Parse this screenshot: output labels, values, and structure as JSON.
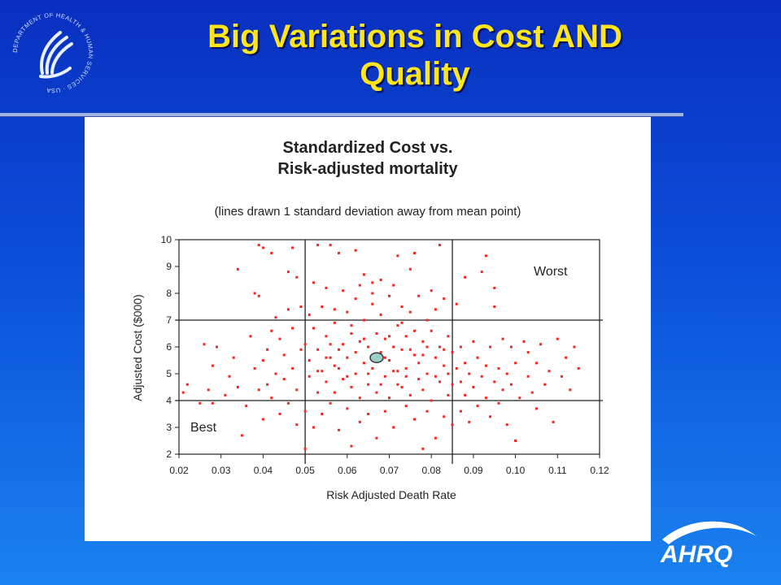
{
  "slide": {
    "title_line1": "Big Variations in Cost AND",
    "title_line2": "Quality"
  },
  "logos": {
    "hhs_seal_text": "DEPARTMENT OF HEALTH & HUMAN SERVICES · USA",
    "ahrq_text": "AHRQ"
  },
  "colors": {
    "background_top": "#0a2fc0",
    "background_bottom": "#1a82f0",
    "title": "#ffe51a",
    "points": "#ff2020",
    "mean_marker": "#9ad0c8"
  },
  "chart_data": {
    "type": "scatter",
    "title_line1": "Standardized Cost vs.",
    "title_line2": "Risk-adjusted mortality",
    "subtitle": "(lines drawn 1 standard deviation away from mean point)",
    "xlabel": "Risk Adjusted Death Rate",
    "ylabel": "Adjusted Cost ($000)",
    "xlim": [
      0.02,
      0.12
    ],
    "ylim": [
      2,
      10
    ],
    "x_ticks": [
      "0.02",
      "0.03",
      "0.04",
      "0.05",
      "0.06",
      "0.07",
      "0.08",
      "0.09",
      "0.10",
      "0.11",
      "0.12"
    ],
    "y_ticks": [
      "2",
      "3",
      "4",
      "5",
      "6",
      "7",
      "8",
      "9",
      "10"
    ],
    "reference_lines": {
      "x": [
        0.05,
        0.085
      ],
      "y": [
        4,
        7
      ]
    },
    "mean_point": {
      "x": 0.067,
      "y": 5.6
    },
    "annotations": {
      "top_right": "Worst",
      "bottom_left": "Best"
    },
    "grid": false,
    "legend": "none",
    "series": [
      {
        "values": [
          [
            0.021,
            4.3
          ],
          [
            0.022,
            4.6
          ],
          [
            0.025,
            3.9
          ],
          [
            0.026,
            6.1
          ],
          [
            0.027,
            4.4
          ],
          [
            0.028,
            3.9
          ],
          [
            0.028,
            5.3
          ],
          [
            0.029,
            6.0
          ],
          [
            0.031,
            4.2
          ],
          [
            0.032,
            4.9
          ],
          [
            0.033,
            5.6
          ],
          [
            0.034,
            4.5
          ],
          [
            0.034,
            8.9
          ],
          [
            0.035,
            2.7
          ],
          [
            0.036,
            3.8
          ],
          [
            0.037,
            6.4
          ],
          [
            0.038,
            5.2
          ],
          [
            0.038,
            8.0
          ],
          [
            0.039,
            7.9
          ],
          [
            0.039,
            4.4
          ],
          [
            0.039,
            9.8
          ],
          [
            0.04,
            3.3
          ],
          [
            0.04,
            5.5
          ],
          [
            0.04,
            9.7
          ],
          [
            0.041,
            4.6
          ],
          [
            0.041,
            5.9
          ],
          [
            0.042,
            6.6
          ],
          [
            0.042,
            4.1
          ],
          [
            0.042,
            9.5
          ],
          [
            0.043,
            7.1
          ],
          [
            0.043,
            5.0
          ],
          [
            0.044,
            3.5
          ],
          [
            0.044,
            6.3
          ],
          [
            0.045,
            4.8
          ],
          [
            0.045,
            5.7
          ],
          [
            0.046,
            8.8
          ],
          [
            0.046,
            7.4
          ],
          [
            0.046,
            3.9
          ],
          [
            0.047,
            5.2
          ],
          [
            0.047,
            6.7
          ],
          [
            0.047,
            9.7
          ],
          [
            0.048,
            4.4
          ],
          [
            0.048,
            8.6
          ],
          [
            0.048,
            3.1
          ],
          [
            0.049,
            5.9
          ],
          [
            0.049,
            7.5
          ],
          [
            0.05,
            6.1
          ],
          [
            0.05,
            3.6
          ],
          [
            0.05,
            2.2
          ],
          [
            0.051,
            4.9
          ],
          [
            0.051,
            7.2
          ],
          [
            0.051,
            5.5
          ],
          [
            0.052,
            3.0
          ],
          [
            0.052,
            6.7
          ],
          [
            0.052,
            8.4
          ],
          [
            0.053,
            4.3
          ],
          [
            0.053,
            5.9
          ],
          [
            0.053,
            9.8
          ],
          [
            0.054,
            7.5
          ],
          [
            0.054,
            5.1
          ],
          [
            0.054,
            3.5
          ],
          [
            0.055,
            6.4
          ],
          [
            0.055,
            4.7
          ],
          [
            0.055,
            8.2
          ],
          [
            0.056,
            9.8
          ],
          [
            0.056,
            5.6
          ],
          [
            0.056,
            3.9
          ],
          [
            0.057,
            6.9
          ],
          [
            0.057,
            4.3
          ],
          [
            0.057,
            7.4
          ],
          [
            0.058,
            5.2
          ],
          [
            0.058,
            9.5
          ],
          [
            0.058,
            2.9
          ],
          [
            0.059,
            6.1
          ],
          [
            0.059,
            4.8
          ],
          [
            0.059,
            8.1
          ],
          [
            0.06,
            5.6
          ],
          [
            0.06,
            3.7
          ],
          [
            0.06,
            7.3
          ],
          [
            0.061,
            6.5
          ],
          [
            0.061,
            4.5
          ],
          [
            0.061,
            2.3
          ],
          [
            0.062,
            5.0
          ],
          [
            0.062,
            7.8
          ],
          [
            0.062,
            9.6
          ],
          [
            0.063,
            6.2
          ],
          [
            0.063,
            4.1
          ],
          [
            0.063,
            3.2
          ],
          [
            0.064,
            5.4
          ],
          [
            0.064,
            7.0
          ],
          [
            0.064,
            8.7
          ],
          [
            0.065,
            6.0
          ],
          [
            0.065,
            4.6
          ],
          [
            0.065,
            3.5
          ],
          [
            0.066,
            5.2
          ],
          [
            0.066,
            7.6
          ],
          [
            0.066,
            8.4
          ],
          [
            0.067,
            6.5
          ],
          [
            0.067,
            4.3
          ],
          [
            0.067,
            2.6
          ],
          [
            0.068,
            5.8
          ],
          [
            0.068,
            7.2
          ],
          [
            0.068,
            8.5
          ],
          [
            0.069,
            4.9
          ],
          [
            0.069,
            6.3
          ],
          [
            0.069,
            3.6
          ],
          [
            0.07,
            5.5
          ],
          [
            0.07,
            7.9
          ],
          [
            0.07,
            4.1
          ],
          [
            0.071,
            6.0
          ],
          [
            0.071,
            8.3
          ],
          [
            0.071,
            3.0
          ],
          [
            0.072,
            5.1
          ],
          [
            0.072,
            6.8
          ],
          [
            0.072,
            9.4
          ],
          [
            0.073,
            4.5
          ],
          [
            0.073,
            5.9
          ],
          [
            0.073,
            7.5
          ],
          [
            0.074,
            6.4
          ],
          [
            0.074,
            3.8
          ],
          [
            0.074,
            5.2
          ],
          [
            0.075,
            7.3
          ],
          [
            0.075,
            4.2
          ],
          [
            0.075,
            8.9
          ],
          [
            0.076,
            5.7
          ],
          [
            0.076,
            6.6
          ],
          [
            0.076,
            3.3
          ],
          [
            0.077,
            4.8
          ],
          [
            0.077,
            7.9
          ],
          [
            0.077,
            5.4
          ],
          [
            0.078,
            6.2
          ],
          [
            0.078,
            2.2
          ],
          [
            0.078,
            4.4
          ],
          [
            0.079,
            7.0
          ],
          [
            0.079,
            5.0
          ],
          [
            0.079,
            3.6
          ],
          [
            0.08,
            6.6
          ],
          [
            0.08,
            8.1
          ],
          [
            0.08,
            4.0
          ],
          [
            0.081,
            5.6
          ],
          [
            0.081,
            7.4
          ],
          [
            0.081,
            2.6
          ],
          [
            0.082,
            6.0
          ],
          [
            0.082,
            4.7
          ],
          [
            0.082,
            9.8
          ],
          [
            0.083,
            5.3
          ],
          [
            0.083,
            7.8
          ],
          [
            0.083,
            3.4
          ],
          [
            0.084,
            6.4
          ],
          [
            0.084,
            4.2
          ],
          [
            0.084,
            5.0
          ],
          [
            0.085,
            3.1
          ],
          [
            0.085,
            4.6
          ],
          [
            0.085,
            5.8
          ],
          [
            0.086,
            5.2
          ],
          [
            0.086,
            7.6
          ],
          [
            0.087,
            4.7
          ],
          [
            0.087,
            3.6
          ],
          [
            0.087,
            6.0
          ],
          [
            0.088,
            5.4
          ],
          [
            0.088,
            4.2
          ],
          [
            0.088,
            8.6
          ],
          [
            0.089,
            5.0
          ],
          [
            0.089,
            3.2
          ],
          [
            0.09,
            6.2
          ],
          [
            0.09,
            4.5
          ],
          [
            0.091,
            5.6
          ],
          [
            0.091,
            3.8
          ],
          [
            0.092,
            4.9
          ],
          [
            0.092,
            8.8
          ],
          [
            0.093,
            5.3
          ],
          [
            0.093,
            4.1
          ],
          [
            0.093,
            9.4
          ],
          [
            0.094,
            6.0
          ],
          [
            0.094,
            3.4
          ],
          [
            0.095,
            4.7
          ],
          [
            0.095,
            8.2
          ],
          [
            0.095,
            7.5
          ],
          [
            0.096,
            5.2
          ],
          [
            0.096,
            3.9
          ],
          [
            0.097,
            6.3
          ],
          [
            0.097,
            4.4
          ],
          [
            0.098,
            5.0
          ],
          [
            0.099,
            4.6
          ],
          [
            0.099,
            6.0
          ],
          [
            0.1,
            5.4
          ],
          [
            0.1,
            2.5
          ],
          [
            0.101,
            4.1
          ],
          [
            0.102,
            6.2
          ],
          [
            0.103,
            4.9
          ],
          [
            0.103,
            5.8
          ],
          [
            0.104,
            4.3
          ],
          [
            0.105,
            5.4
          ],
          [
            0.106,
            6.1
          ],
          [
            0.107,
            4.6
          ],
          [
            0.108,
            5.1
          ],
          [
            0.109,
            3.2
          ],
          [
            0.11,
            6.3
          ],
          [
            0.111,
            4.9
          ],
          [
            0.112,
            5.6
          ],
          [
            0.113,
            4.4
          ],
          [
            0.114,
            6.0
          ],
          [
            0.115,
            5.2
          ],
          [
            0.105,
            3.7
          ],
          [
            0.098,
            3.1
          ],
          [
            0.076,
            9.5
          ],
          [
            0.063,
            8.3
          ],
          [
            0.066,
            8.0
          ],
          [
            0.073,
            6.9
          ],
          [
            0.056,
            6.1
          ],
          [
            0.058,
            5.9
          ],
          [
            0.061,
            6.8
          ],
          [
            0.064,
            6.3
          ],
          [
            0.069,
            5.6
          ],
          [
            0.071,
            5.1
          ],
          [
            0.074,
            4.9
          ],
          [
            0.078,
            5.7
          ],
          [
            0.081,
            4.9
          ],
          [
            0.057,
            5.3
          ],
          [
            0.06,
            4.9
          ],
          [
            0.062,
            5.8
          ],
          [
            0.065,
            5.0
          ],
          [
            0.068,
            4.6
          ],
          [
            0.07,
            6.4
          ],
          [
            0.072,
            4.6
          ],
          [
            0.075,
            5.9
          ],
          [
            0.079,
            6.0
          ],
          [
            0.083,
            5.9
          ],
          [
            0.053,
            5.1
          ],
          [
            0.055,
            5.6
          ]
        ]
      }
    ]
  }
}
